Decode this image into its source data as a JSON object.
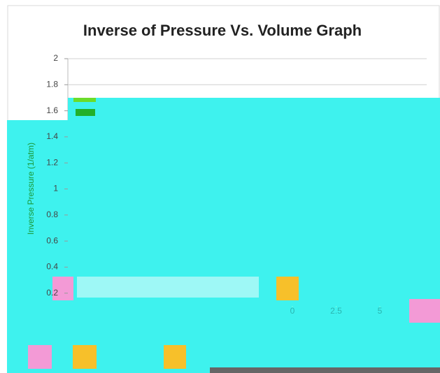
{
  "chart_data": {
    "type": "scatter",
    "title": "Inverse of Pressure Vs. Volume Graph",
    "y_label": "Inverse Pressure (1/atm)",
    "ylim": [
      0,
      2
    ],
    "yticks": [
      0.2,
      0.4,
      0.6,
      0.8,
      1,
      1.2,
      1.4,
      1.6,
      1.8,
      2
    ],
    "xlim": [
      0,
      5
    ],
    "xticks": [
      0,
      2.5,
      5
    ],
    "grid": true
  }
}
